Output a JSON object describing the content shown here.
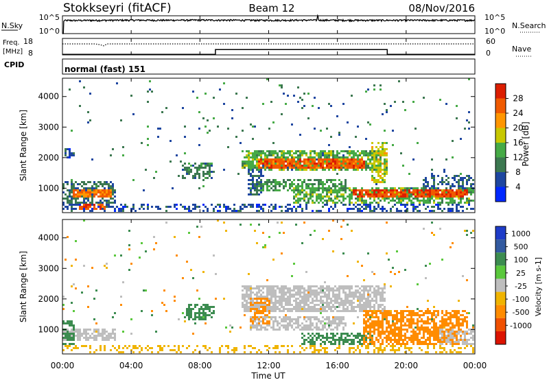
{
  "header": {
    "station": "Stokkseyri (fitACF)",
    "beam": "Beam 12",
    "date": "08/Nov/2016"
  },
  "noise_panel": {
    "left_label": "N.Sky",
    "left_ticks": [
      "10^5",
      "10^0"
    ],
    "right_label": "N.Search",
    "right_ticks": [
      "10^5",
      "10^0"
    ]
  },
  "freq_panel": {
    "left_label_1": "Freq.",
    "left_label_2": "[MHz]",
    "left_ticks": [
      "18",
      "8"
    ],
    "right_label": "Nave",
    "right_ticks": [
      "60",
      "0"
    ]
  },
  "cpid_panel": {
    "label": "CPID",
    "value": "normal (fast) 151"
  },
  "x_axis": {
    "title": "Time UT",
    "ticks": [
      "00:00",
      "04:00",
      "08:00",
      "12:00",
      "16:00",
      "20:00",
      "00:00"
    ]
  },
  "colors": {
    "power": [
      "#0028ff",
      "#1e46a0",
      "#3c7850",
      "#46aa46",
      "#c8c800",
      "#ff9600",
      "#f05a00",
      "#dc1e00"
    ],
    "velocity": [
      "#1e3cc8",
      "#325aa0",
      "#3c8c50",
      "#5ac83c",
      "#bebebe",
      "#f0b400",
      "#ff8c00",
      "#f05000",
      "#dc1400"
    ]
  },
  "chart_data": [
    {
      "type": "line",
      "panel": "noise",
      "x_range_hours": [
        0,
        24
      ],
      "y_scale": "log",
      "ylim": [
        1,
        100000
      ],
      "series": [
        {
          "x": [
            0,
            0.05,
            0.1,
            2,
            4,
            6,
            8,
            10,
            12,
            14,
            14.8,
            14.85,
            14.9,
            16,
            18,
            20,
            22,
            24
          ],
          "values": [
            1,
            1,
            4000,
            4500,
            5000,
            4800,
            5200,
            5000,
            4600,
            5000,
            5000,
            120000,
            5000,
            4800,
            4500,
            4700,
            4600,
            4700
          ]
        }
      ]
    },
    {
      "type": "line",
      "panel": "frequency",
      "ylabel": "Freq. [MHz]",
      "ylim": [
        8,
        18
      ],
      "x_range_hours": [
        0,
        24
      ],
      "series": [
        {
          "x": [
            0,
            8.9,
            8.9,
            18.9,
            18.9,
            24
          ],
          "values": [
            8.3,
            8.3,
            11.2,
            11.2,
            8.3,
            8.3
          ]
        }
      ]
    },
    {
      "type": "line",
      "panel": "nave",
      "ylim": [
        0,
        60
      ],
      "x_range_hours": [
        0,
        24
      ],
      "series": [
        {
          "x": [
            0,
            1.9,
            2.2,
            2.4,
            2.6,
            24
          ],
          "values": [
            40,
            40,
            37,
            33,
            40,
            40
          ]
        }
      ]
    },
    {
      "type": "heatmap",
      "panel": "power",
      "title": "Power [dB]",
      "ylabel": "Slant Range [km]",
      "y_ticks": [
        1000,
        2000,
        3000,
        4000
      ],
      "ylim": [
        200,
        4600
      ],
      "x_range_hours": [
        0,
        24
      ],
      "colorbar": {
        "label": "Power [dB]",
        "ticks": [
          4,
          8,
          12,
          16,
          20,
          24,
          28
        ],
        "range": [
          0,
          32
        ]
      },
      "features": [
        {
          "t0": 0.0,
          "t1": 24.0,
          "r0": 200,
          "r1": 480,
          "density": 0.35,
          "value": 6
        },
        {
          "t0": 0.0,
          "t1": 3.0,
          "r0": 550,
          "r1": 1200,
          "density": 0.55,
          "value": 9
        },
        {
          "t0": 0.7,
          "t1": 2.8,
          "r0": 700,
          "r1": 950,
          "density": 0.85,
          "value": 24
        },
        {
          "t0": 1.0,
          "t1": 2.5,
          "r0": 300,
          "r1": 480,
          "density": 0.7,
          "value": 26
        },
        {
          "t0": 0.2,
          "t1": 0.6,
          "r0": 2000,
          "r1": 2300,
          "density": 0.5,
          "value": 6
        },
        {
          "t0": 7.0,
          "t1": 8.8,
          "r0": 1300,
          "r1": 1800,
          "density": 0.55,
          "value": 10
        },
        {
          "t0": 10.5,
          "t1": 18.5,
          "r0": 1600,
          "r1": 2200,
          "density": 0.7,
          "value": 14
        },
        {
          "t0": 11.5,
          "t1": 17.5,
          "r0": 1700,
          "r1": 1950,
          "density": 0.85,
          "value": 26
        },
        {
          "t0": 11.0,
          "t1": 16.5,
          "r0": 950,
          "r1": 1300,
          "density": 0.6,
          "value": 12
        },
        {
          "t0": 13.5,
          "t1": 24.0,
          "r0": 500,
          "r1": 1000,
          "density": 0.6,
          "value": 14
        },
        {
          "t0": 17.0,
          "t1": 23.5,
          "r0": 700,
          "r1": 950,
          "density": 0.8,
          "value": 27
        },
        {
          "t0": 18.0,
          "t1": 18.9,
          "r0": 1200,
          "r1": 2500,
          "density": 0.6,
          "value": 18
        },
        {
          "t0": 21.0,
          "t1": 24.0,
          "r0": 1000,
          "r1": 1400,
          "density": 0.45,
          "value": 8
        },
        {
          "t0": 10.8,
          "t1": 11.6,
          "r0": 800,
          "r1": 1600,
          "density": 0.55,
          "value": 8
        }
      ]
    },
    {
      "type": "heatmap",
      "panel": "velocity",
      "title": "Velocity [m s^-1]",
      "ylabel": "Slant Range [km]",
      "y_ticks": [
        1000,
        2000,
        3000,
        4000
      ],
      "ylim": [
        200,
        4600
      ],
      "x_range_hours": [
        0,
        24
      ],
      "colorbar": {
        "label": "Velocity [m s-1]",
        "ticks": [
          "1000",
          "500",
          "100",
          "25",
          "-25",
          "-100",
          "-500",
          "-1000"
        ]
      },
      "features": [
        {
          "t0": 0.0,
          "t1": 24.0,
          "r0": 200,
          "r1": 480,
          "density": 0.3,
          "value": -60
        },
        {
          "t0": 0.0,
          "t1": 3.0,
          "r0": 650,
          "r1": 1000,
          "density": 0.7,
          "value": 0
        },
        {
          "t0": 0.0,
          "t1": 0.6,
          "r0": 500,
          "r1": 1300,
          "density": 0.6,
          "value": 120
        },
        {
          "t0": 7.2,
          "t1": 8.8,
          "r0": 1300,
          "r1": 1800,
          "density": 0.6,
          "value": 150
        },
        {
          "t0": 10.5,
          "t1": 18.7,
          "r0": 1600,
          "r1": 2400,
          "density": 0.75,
          "value": 0
        },
        {
          "t0": 11.0,
          "t1": 16.5,
          "r0": 1000,
          "r1": 1400,
          "density": 0.65,
          "value": 0
        },
        {
          "t0": 11.0,
          "t1": 12.0,
          "r0": 1200,
          "r1": 2000,
          "density": 0.5,
          "value": -120
        },
        {
          "t0": 14.0,
          "t1": 18.0,
          "r0": 550,
          "r1": 850,
          "density": 0.6,
          "value": 150
        },
        {
          "t0": 17.5,
          "t1": 23.5,
          "r0": 500,
          "r1": 1600,
          "density": 0.7,
          "value": -300
        },
        {
          "t0": 22.0,
          "t1": 24.0,
          "r0": 500,
          "r1": 1000,
          "density": 0.5,
          "value": 0
        }
      ]
    }
  ]
}
